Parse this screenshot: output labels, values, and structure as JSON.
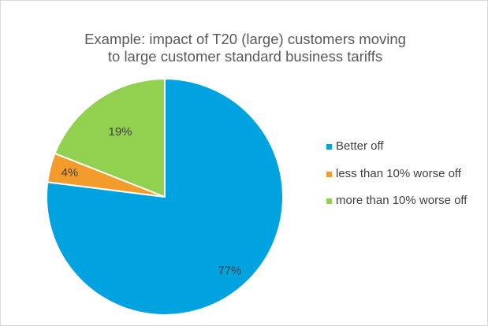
{
  "chart_data": {
    "type": "pie",
    "title_line1": "Example:  impact of T20 (large) customers moving",
    "title_line2": "to large customer standard business tariffs",
    "slices": [
      {
        "name": "Better off",
        "value": 77,
        "label": "77%",
        "color": "#00a3e0"
      },
      {
        "name": "less than 10% worse off",
        "value": 4,
        "label": "4%",
        "color": "#f39c2b"
      },
      {
        "name": "more than 10% worse off",
        "value": 19,
        "label": "19%",
        "color": "#92d050"
      }
    ],
    "legend_position": "right",
    "start_angle": "12 o'clock",
    "direction": "clockwise"
  }
}
